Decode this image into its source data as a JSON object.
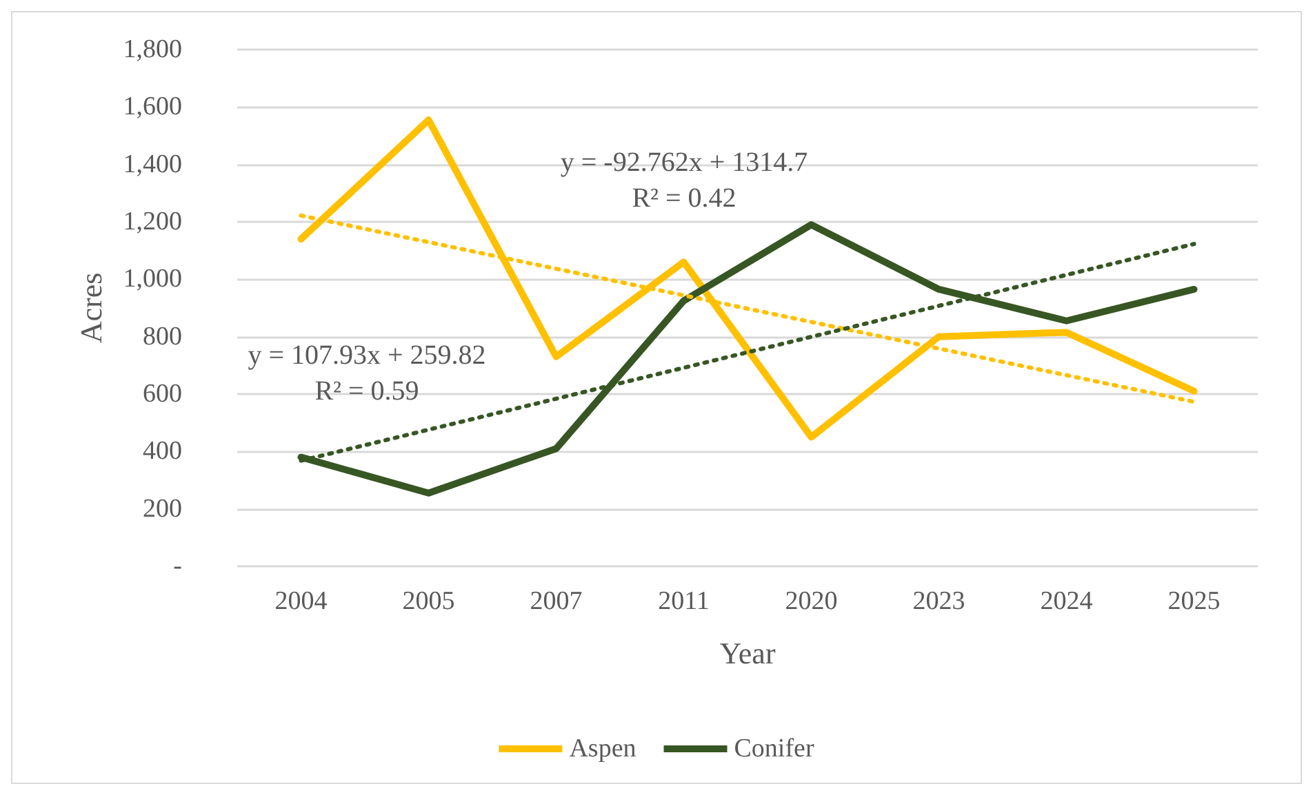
{
  "chart_data": {
    "type": "line",
    "xlabel": "Year",
    "ylabel": "Acres",
    "categories": [
      "2004",
      "2005",
      "2007",
      "2011",
      "2020",
      "2023",
      "2024",
      "2025"
    ],
    "series": [
      {
        "name": "Aspen",
        "color": "#ffc000",
        "values": [
          1140,
          1555,
          730,
          1060,
          450,
          800,
          815,
          610
        ]
      },
      {
        "name": "Conifer",
        "color": "#375623",
        "values": [
          380,
          255,
          410,
          925,
          1190,
          965,
          855,
          965
        ]
      },
      {
        "type": "line",
        "color": "#ffc000",
        "line_style": "dotted",
        "values": [
          1222,
          null,
          null,
          null,
          null,
          null,
          null,
          573
        ]
      },
      {
        "type": "line",
        "color": "#375623",
        "line_style": "dotted",
        "values": [
          368,
          null,
          null,
          null,
          null,
          null,
          null,
          1123
        ]
      }
    ],
    "ylim": [
      0,
      1800
    ],
    "yticks": [
      {
        "value": 0,
        "label": "-"
      },
      {
        "value": 200,
        "label": "200"
      },
      {
        "value": 400,
        "label": "400"
      },
      {
        "value": 600,
        "label": "600"
      },
      {
        "value": 800,
        "label": "800"
      },
      {
        "value": 1000,
        "label": "1,000"
      },
      {
        "value": 1200,
        "label": "1,200"
      },
      {
        "value": 1400,
        "label": "1,400"
      },
      {
        "value": 1600,
        "label": "1,600"
      },
      {
        "value": 1800,
        "label": "1,800"
      }
    ],
    "annotations": [
      "y = -92.762x + 1314.7\nR² = 0.42",
      "y = 107.93x + 259.82\nR² = 0.59"
    ],
    "grid": "y",
    "legend": "bottom",
    "marker": "none",
    "line_style": "solid"
  }
}
